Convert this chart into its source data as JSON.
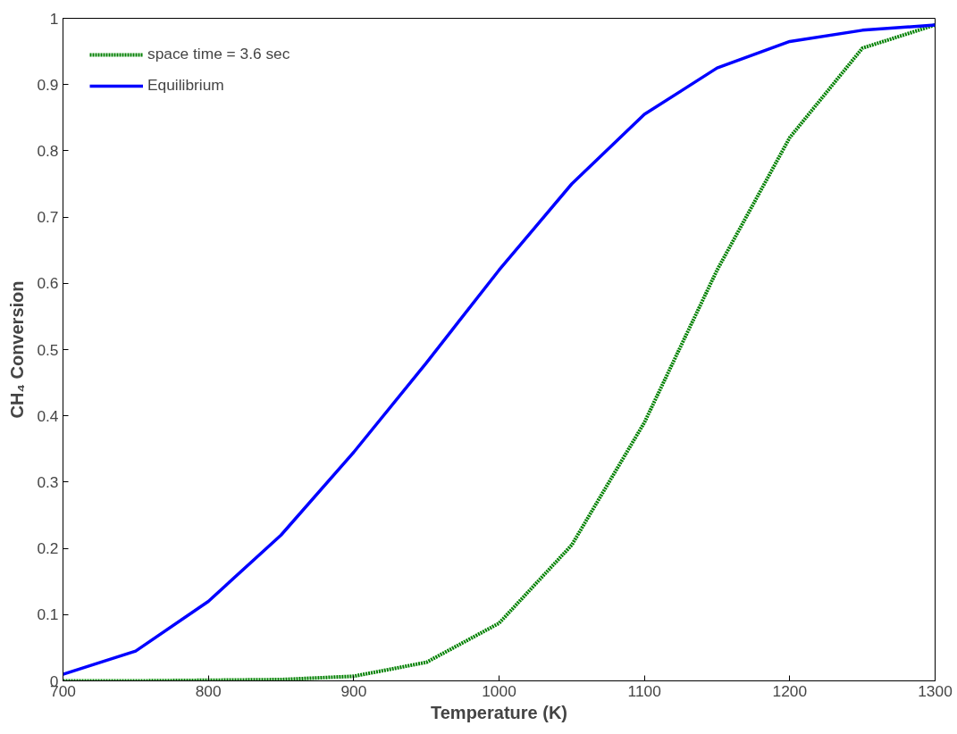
{
  "chart_data": {
    "type": "line",
    "xlabel": "Temperature (K)",
    "ylabel": "CH₄ Conversion",
    "x": [
      700,
      750,
      800,
      850,
      900,
      950,
      1000,
      1050,
      1100,
      1150,
      1200,
      1250,
      1300
    ],
    "series": [
      {
        "name": "space time = 3.6 sec",
        "color": "#008000",
        "line_style": "dotted",
        "values": [
          0,
          0,
          0.001,
          0.002,
          0.007,
          0.028,
          0.087,
          0.205,
          0.39,
          0.62,
          0.82,
          0.955,
          0.99
        ]
      },
      {
        "name": "Equilibrium",
        "color": "#0000ff",
        "line_style": "solid",
        "values": [
          0.01,
          0.045,
          0.12,
          0.22,
          0.345,
          0.48,
          0.62,
          0.75,
          0.855,
          0.925,
          0.965,
          0.982,
          0.99
        ]
      }
    ],
    "xlim": [
      700,
      1300
    ],
    "ylim": [
      0,
      1
    ],
    "xticks": [
      700,
      800,
      900,
      1000,
      1100,
      1200,
      1300
    ],
    "yticks": [
      0,
      0.1,
      0.2,
      0.3,
      0.4,
      0.5,
      0.6,
      0.7,
      0.8,
      0.9,
      1
    ],
    "grid": false,
    "legend": "top left",
    "marker": "none"
  }
}
